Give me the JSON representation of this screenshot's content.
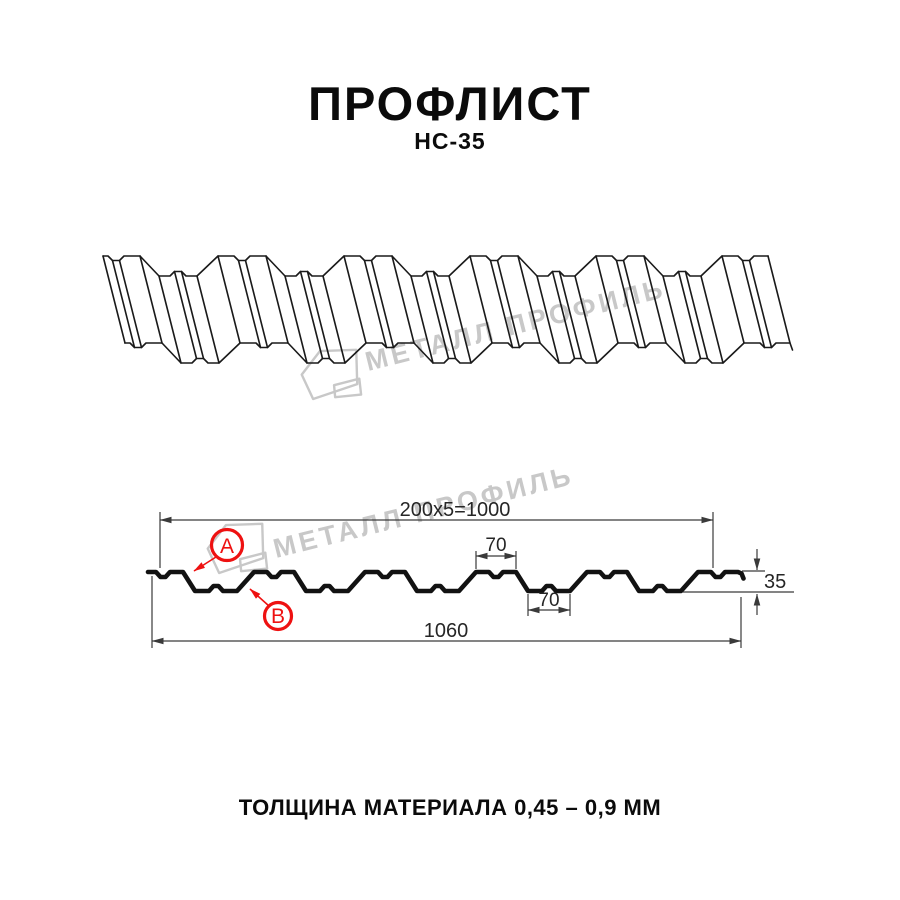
{
  "header": {
    "title": "ПРОФЛИСТ",
    "subtitle": "НС-35"
  },
  "watermark": {
    "brand": "МЕТАЛЛ ПРОФИЛЬ"
  },
  "drawing": {
    "dims": {
      "top_width": "200x5=1000",
      "flange_top": "70",
      "flange_bottom": "70",
      "height": "35",
      "full_width": "1060"
    },
    "markers": {
      "a": "А",
      "b": "В"
    }
  },
  "footer": {
    "text": "ТОЛЩИНА МАТЕРИАЛА 0,45 – 0,9 ММ"
  },
  "colors": {
    "accent_red": "#ee1111",
    "line": "#1a1a1a",
    "dim": "#3a3a3a",
    "watermark": "#c8c8c8"
  }
}
